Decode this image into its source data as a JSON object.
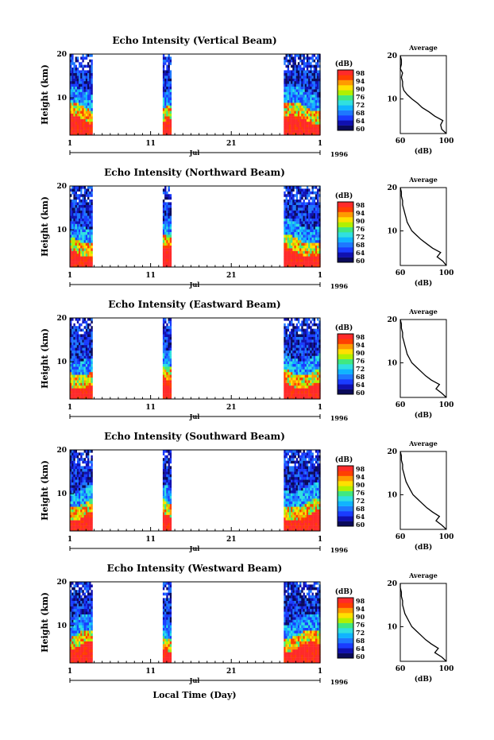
{
  "figure": {
    "x_axis_title": "Local Time (Day)",
    "colors": {
      "scale": [
        "#0a0a5a",
        "#1010b0",
        "#1a3cff",
        "#1e78ff",
        "#10b4ff",
        "#30e0e0",
        "#40e880",
        "#b0f000",
        "#ffe000",
        "#ff9a00",
        "#ff4000",
        "#ff2a2a"
      ],
      "background": "#ffffff",
      "line": "#000000"
    }
  },
  "chart_data": [
    {
      "type": "heatmap",
      "title": "Echo Intensity (Vertical Beam)",
      "ylabel": "Height (km)",
      "yticks": [
        "20",
        "10"
      ],
      "ylim": [
        1.5,
        20
      ],
      "xlim": [
        1,
        32
      ],
      "xticks": [
        "1",
        "11",
        "21",
        "1"
      ],
      "month_label": "Jul",
      "year_label": "1996",
      "data_day_ranges": [
        [
          1,
          3.8
        ],
        [
          12.5,
          13.5
        ],
        [
          27.5,
          32
        ]
      ],
      "colorbar": {
        "unit": "(dB)",
        "ticks": [
          "98",
          "94",
          "90",
          "76",
          "72",
          "68",
          "64",
          "60"
        ],
        "range": [
          60,
          98
        ]
      },
      "profile": {
        "title": "Average",
        "xlabel": "(dB)",
        "xticks": [
          "60",
          "100"
        ],
        "xlim": [
          60,
          100
        ],
        "yticks": [
          "20",
          "10"
        ],
        "ylim": [
          2,
          20
        ],
        "height_km": [
          2,
          3,
          4,
          5,
          6,
          7,
          8,
          9,
          10,
          11,
          12,
          13,
          14,
          15,
          16,
          17,
          18,
          19,
          20
        ],
        "echo_db": [
          100,
          96,
          95,
          97,
          90,
          85,
          79,
          75,
          70,
          66,
          63,
          62,
          62,
          61,
          62,
          60,
          61,
          61,
          60
        ]
      }
    },
    {
      "type": "heatmap",
      "title": "Echo Intensity (Northward Beam)",
      "ylabel": "Height (km)",
      "yticks": [
        "20",
        "10"
      ],
      "ylim": [
        1.5,
        20
      ],
      "xlim": [
        1,
        32
      ],
      "xticks": [
        "1",
        "11",
        "21",
        "1"
      ],
      "month_label": "Jul",
      "year_label": "1996",
      "data_day_ranges": [
        [
          1,
          3.8
        ],
        [
          12.5,
          13.5
        ],
        [
          27.5,
          32
        ]
      ],
      "colorbar": {
        "unit": "(dB)",
        "ticks": [
          "98",
          "94",
          "90",
          "76",
          "72",
          "68",
          "64",
          "60"
        ],
        "range": [
          60,
          98
        ]
      },
      "profile": {
        "title": "Average",
        "xlabel": "(dB)",
        "xticks": [
          "60",
          "100"
        ],
        "xlim": [
          60,
          100
        ],
        "yticks": [
          "20",
          "10"
        ],
        "ylim": [
          2,
          20
        ],
        "height_km": [
          2,
          3,
          4,
          5,
          6,
          7,
          8,
          9,
          10,
          11,
          12,
          13,
          14,
          15,
          16,
          17,
          18,
          19,
          20
        ],
        "echo_db": [
          100,
          97,
          92,
          95,
          88,
          83,
          78,
          74,
          70,
          68,
          66,
          65,
          64,
          63,
          62,
          62,
          61,
          61,
          60
        ]
      }
    },
    {
      "type": "heatmap",
      "title": "Echo Intensity (Eastward Beam)",
      "ylabel": "Height (km)",
      "yticks": [
        "20",
        "10"
      ],
      "ylim": [
        1.5,
        20
      ],
      "xlim": [
        1,
        32
      ],
      "xticks": [
        "1",
        "11",
        "21",
        "1"
      ],
      "month_label": "Jul",
      "year_label": "1996",
      "data_day_ranges": [
        [
          1,
          3.8
        ],
        [
          12.5,
          13.5
        ],
        [
          27.5,
          32
        ]
      ],
      "colorbar": {
        "unit": "(dB)",
        "ticks": [
          "98",
          "94",
          "90",
          "76",
          "72",
          "68",
          "64",
          "60"
        ],
        "range": [
          60,
          98
        ]
      },
      "profile": {
        "title": "Average",
        "xlabel": "(dB)",
        "xticks": [
          "60",
          "100"
        ],
        "xlim": [
          60,
          100
        ],
        "yticks": [
          "20",
          "10"
        ],
        "ylim": [
          2,
          20
        ],
        "height_km": [
          2,
          3,
          4,
          5,
          6,
          7,
          8,
          9,
          10,
          11,
          12,
          13,
          14,
          15,
          16,
          17,
          18,
          19,
          20
        ],
        "echo_db": [
          100,
          96,
          91,
          94,
          87,
          82,
          78,
          74,
          70,
          68,
          66,
          65,
          64,
          63,
          62,
          62,
          61,
          61,
          60
        ]
      }
    },
    {
      "type": "heatmap",
      "title": "Echo Intensity (Southward Beam)",
      "ylabel": "Height (km)",
      "yticks": [
        "20",
        "10"
      ],
      "ylim": [
        1.5,
        20
      ],
      "xlim": [
        1,
        32
      ],
      "xticks": [
        "1",
        "11",
        "21",
        "1"
      ],
      "month_label": "Jul",
      "year_label": "1996",
      "data_day_ranges": [
        [
          1,
          3.8
        ],
        [
          12.5,
          13.5
        ],
        [
          27.5,
          32
        ]
      ],
      "colorbar": {
        "unit": "(dB)",
        "ticks": [
          "98",
          "94",
          "90",
          "76",
          "72",
          "68",
          "64",
          "60"
        ],
        "range": [
          60,
          98
        ]
      },
      "profile": {
        "title": "Average",
        "xlabel": "(dB)",
        "xticks": [
          "60",
          "100"
        ],
        "xlim": [
          60,
          100
        ],
        "yticks": [
          "20",
          "10"
        ],
        "ylim": [
          2,
          20
        ],
        "height_km": [
          2,
          3,
          4,
          5,
          6,
          7,
          8,
          9,
          10,
          11,
          12,
          13,
          14,
          15,
          16,
          17,
          18,
          19,
          20
        ],
        "echo_db": [
          100,
          96,
          91,
          94,
          88,
          83,
          79,
          75,
          71,
          69,
          67,
          65,
          64,
          63,
          62,
          62,
          61,
          61,
          60
        ]
      }
    },
    {
      "type": "heatmap",
      "title": "Echo Intensity (Westward Beam)",
      "ylabel": "Height (km)",
      "yticks": [
        "20",
        "10"
      ],
      "ylim": [
        1.5,
        20
      ],
      "xlim": [
        1,
        32
      ],
      "xticks": [
        "1",
        "11",
        "21",
        "1"
      ],
      "month_label": "Jul",
      "year_label": "1996",
      "data_day_ranges": [
        [
          1,
          3.8
        ],
        [
          12.5,
          13.5
        ],
        [
          27.5,
          32
        ]
      ],
      "colorbar": {
        "unit": "(dB)",
        "ticks": [
          "98",
          "94",
          "90",
          "76",
          "72",
          "68",
          "64",
          "60"
        ],
        "range": [
          60,
          98
        ]
      },
      "profile": {
        "title": "Average",
        "xlabel": "(dB)",
        "xticks": [
          "60",
          "100"
        ],
        "xlim": [
          60,
          100
        ],
        "yticks": [
          "20",
          "10"
        ],
        "ylim": [
          2,
          20
        ],
        "height_km": [
          2,
          3,
          4,
          5,
          6,
          7,
          8,
          9,
          10,
          11,
          12,
          13,
          14,
          15,
          16,
          17,
          18,
          19,
          20
        ],
        "echo_db": [
          100,
          96,
          90,
          93,
          87,
          82,
          78,
          74,
          70,
          68,
          66,
          64,
          63,
          62,
          62,
          61,
          61,
          60,
          60
        ]
      }
    }
  ]
}
